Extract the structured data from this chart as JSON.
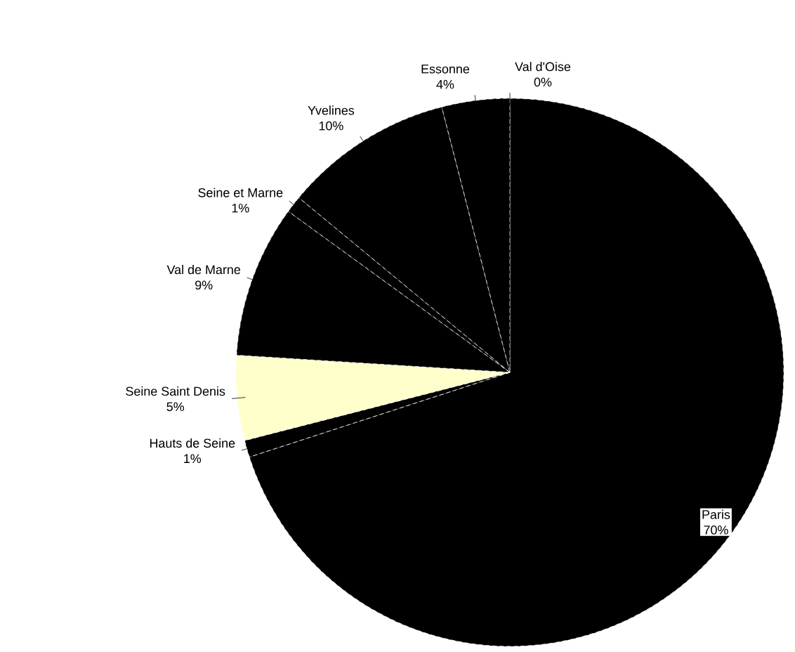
{
  "chart_data": {
    "type": "pie",
    "categories": [
      "Paris",
      "Hauts de Seine",
      "Seine Saint Denis",
      "Val de Marne",
      "Seine et Marne",
      "Yvelines",
      "Essonne",
      "Val d'Oise"
    ],
    "values": [
      70,
      1,
      5,
      9,
      1,
      10,
      4,
      0
    ],
    "colors": [
      "#000000",
      "#000000",
      "#ffffcc",
      "#000000",
      "#000000",
      "#000000",
      "#000000",
      "#000000"
    ],
    "value_labels": [
      "70%",
      "1%",
      "5%",
      "9%",
      "1%",
      "10%",
      "4%",
      "0%"
    ]
  }
}
